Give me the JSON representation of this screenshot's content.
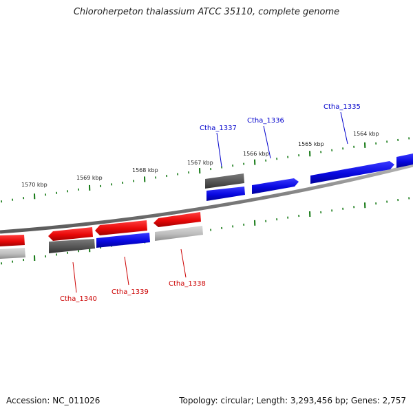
{
  "header": {
    "title": "Chloroherpeton thalassium ATCC 35110, complete genome"
  },
  "footer": {
    "accession": "Accession: NC_011026",
    "summary": "Topology: circular; Length: 3,293,456 bp; Genes: 2,757"
  },
  "scale": {
    "labels": [
      "1570 kbp",
      "1569 kbp",
      "1568 kbp",
      "1567 kbp",
      "1566 kbp",
      "1565 kbp",
      "1564 kbp"
    ]
  },
  "genes": [
    {
      "name": "Ctha_1335",
      "strand": "forward",
      "color": "#0000cc"
    },
    {
      "name": "Ctha_1336",
      "strand": "forward",
      "color": "#0000cc"
    },
    {
      "name": "Ctha_1337",
      "strand": "forward",
      "color": "#0000cc"
    },
    {
      "name": "Ctha_1338",
      "strand": "reverse",
      "color": "#cc0000"
    },
    {
      "name": "Ctha_1339",
      "strand": "reverse",
      "color": "#cc0000"
    },
    {
      "name": "Ctha_1340",
      "strand": "reverse",
      "color": "#cc0000"
    }
  ],
  "colors": {
    "forward": "#0a0ae6",
    "reverse": "#ee0a0a",
    "tick": "#117711",
    "backbone": "#8a8a8a",
    "rna_dark": "#555555",
    "rna_light": "#b8b8b8"
  }
}
